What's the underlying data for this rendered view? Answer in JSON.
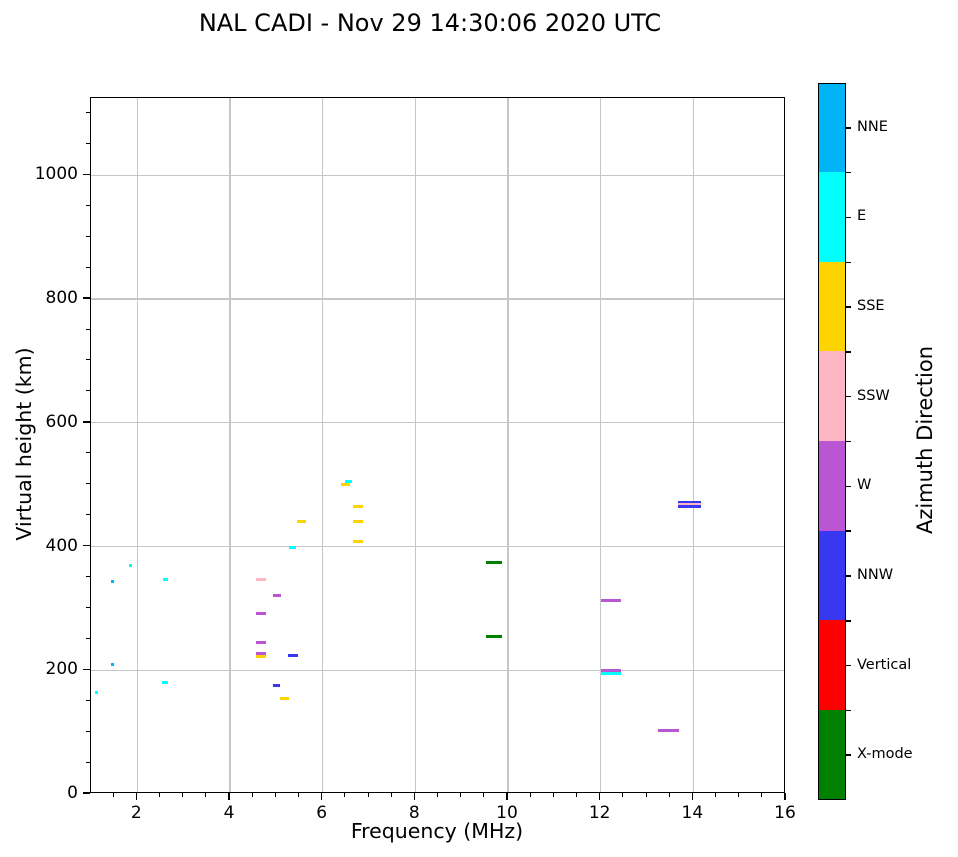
{
  "title": "NAL CADI - Nov 29 14:30:06 2020 UTC",
  "chart_data": {
    "type": "scatter",
    "title": "NAL CADI - Nov 29 14:30:06 2020 UTC",
    "xlabel": "Frequency (MHz)",
    "ylabel": "Virtual height (km)",
    "xlim": [
      1,
      16
    ],
    "ylim": [
      0,
      1125
    ],
    "x_ticks": [
      2,
      4,
      6,
      8,
      10,
      12,
      14,
      16
    ],
    "y_ticks": [
      0,
      200,
      400,
      600,
      800,
      1000
    ],
    "x_minor_step": 0.5,
    "y_minor_step": 50,
    "grid": true,
    "grid_color": "#c6c6c6",
    "colorbar": {
      "label": "Azimuth Direction",
      "categories_top_to_bottom": [
        "NNE",
        "E",
        "SSE",
        "SSW",
        "W",
        "NNW",
        "Vertical",
        "X-mode"
      ],
      "colors": {
        "NNE": "#00b4f5",
        "E": "#00ffff",
        "SSE": "#fdd400",
        "SSW": "#ffb6c4",
        "W": "#ba55d3",
        "NNW": "#3838f0",
        "Vertical": "#ff0000",
        "X-mode": "#008000"
      }
    },
    "points": [
      {
        "freq_mhz": 1.12,
        "height_km": 164,
        "direction": "E",
        "width_mhz": 0.07
      },
      {
        "freq_mhz": 1.47,
        "height_km": 344,
        "direction": "NNE",
        "width_mhz": 0.07
      },
      {
        "freq_mhz": 1.47,
        "height_km": 209,
        "direction": "NNE",
        "width_mhz": 0.07
      },
      {
        "freq_mhz": 1.85,
        "height_km": 370,
        "direction": "E",
        "width_mhz": 0.06
      },
      {
        "freq_mhz": 2.61,
        "height_km": 347,
        "direction": "E",
        "width_mhz": 0.12
      },
      {
        "freq_mhz": 2.6,
        "height_km": 181,
        "direction": "E",
        "width_mhz": 0.13
      },
      {
        "freq_mhz": 4.67,
        "height_km": 346,
        "direction": "SSW",
        "width_mhz": 0.2
      },
      {
        "freq_mhz": 4.67,
        "height_km": 291,
        "direction": "W",
        "width_mhz": 0.2
      },
      {
        "freq_mhz": 4.67,
        "height_km": 245,
        "direction": "W",
        "width_mhz": 0.2
      },
      {
        "freq_mhz": 4.67,
        "height_km": 227,
        "direction": "W",
        "width_mhz": 0.2
      },
      {
        "freq_mhz": 4.67,
        "height_km": 222,
        "direction": "SSE",
        "width_mhz": 0.2
      },
      {
        "freq_mhz": 5.01,
        "height_km": 321,
        "direction": "W",
        "width_mhz": 0.17
      },
      {
        "freq_mhz": 5.01,
        "height_km": 175,
        "direction": "NNW",
        "width_mhz": 0.16
      },
      {
        "freq_mhz": 5.18,
        "height_km": 154,
        "direction": "SSE",
        "width_mhz": 0.2
      },
      {
        "freq_mhz": 5.36,
        "height_km": 224,
        "direction": "NNW",
        "width_mhz": 0.2
      },
      {
        "freq_mhz": 5.35,
        "height_km": 398,
        "direction": "E",
        "width_mhz": 0.17
      },
      {
        "freq_mhz": 5.55,
        "height_km": 441,
        "direction": "SSE",
        "width_mhz": 0.2
      },
      {
        "freq_mhz": 6.5,
        "height_km": 501,
        "direction": "SSE",
        "width_mhz": 0.2
      },
      {
        "freq_mhz": 6.56,
        "height_km": 505,
        "direction": "E",
        "width_mhz": 0.15
      },
      {
        "freq_mhz": 6.76,
        "height_km": 465,
        "direction": "SSE",
        "width_mhz": 0.23
      },
      {
        "freq_mhz": 6.76,
        "height_km": 441,
        "direction": "SSE",
        "width_mhz": 0.23
      },
      {
        "freq_mhz": 6.76,
        "height_km": 408,
        "direction": "SSE",
        "width_mhz": 0.22
      },
      {
        "freq_mhz": 9.7,
        "height_km": 374,
        "direction": "X-mode",
        "width_mhz": 0.33
      },
      {
        "freq_mhz": 9.7,
        "height_km": 255,
        "direction": "X-mode",
        "width_mhz": 0.33
      },
      {
        "freq_mhz": 12.22,
        "height_km": 312,
        "direction": "W",
        "width_mhz": 0.42
      },
      {
        "freq_mhz": 12.22,
        "height_km": 200,
        "direction": "W",
        "width_mhz": 0.42
      },
      {
        "freq_mhz": 12.22,
        "height_km": 195,
        "direction": "E",
        "width_mhz": 0.42
      },
      {
        "freq_mhz": 13.47,
        "height_km": 102,
        "direction": "W",
        "width_mhz": 0.45
      },
      {
        "freq_mhz": 13.92,
        "height_km": 471,
        "direction": "NNW",
        "width_mhz": 0.5
      },
      {
        "freq_mhz": 13.92,
        "height_km": 468,
        "direction": "SSW",
        "width_mhz": 0.5
      },
      {
        "freq_mhz": 13.92,
        "height_km": 464,
        "direction": "NNW",
        "width_mhz": 0.5
      }
    ]
  }
}
